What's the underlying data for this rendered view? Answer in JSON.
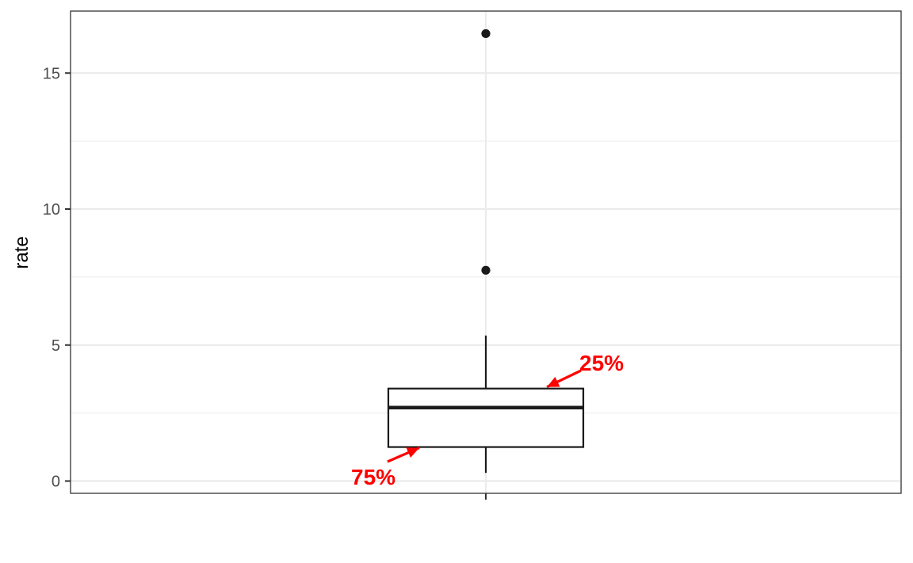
{
  "chart_data": {
    "type": "boxplot",
    "title": "",
    "xlabel": "",
    "ylabel": "rate",
    "ylim": [
      -0.45,
      17.3
    ],
    "yticks": [
      0,
      5,
      10,
      15
    ],
    "ytick_labels": [
      "0",
      "5",
      "10",
      "15"
    ],
    "y_minor_ticks": [
      2.5,
      7.5,
      12.5
    ],
    "x_categories": [
      ""
    ],
    "grid": true,
    "box": {
      "whisker_low": 0.3,
      "q1": 1.25,
      "median": 2.7,
      "q3": 3.4,
      "whisker_high": 5.35,
      "outliers": [
        7.75,
        16.45
      ]
    },
    "annotations": [
      {
        "text": "25%",
        "points_to": 3.4,
        "color": "#ff0000"
      },
      {
        "text": "75%",
        "points_to": 1.25,
        "color": "#ff0000"
      }
    ],
    "colors": {
      "box_stroke": "#1a1a1a",
      "grid": "#ebebeb",
      "panel_border": "#333333",
      "annotation": "#ff0000"
    }
  }
}
